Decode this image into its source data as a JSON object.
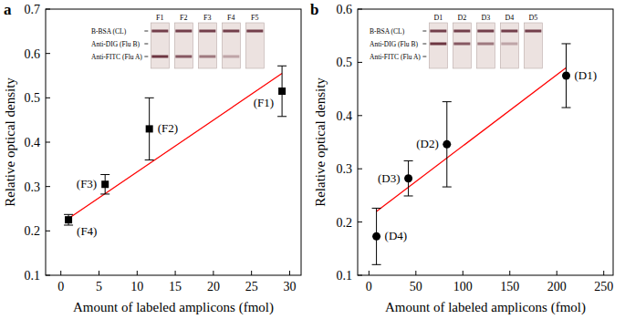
{
  "chart_data": [
    {
      "type": "scatter",
      "panel": "a",
      "x_label": "Amount of labeled amplicons (fmol)",
      "y_label": "Relative optical density",
      "xlim": [
        -2,
        31.5
      ],
      "ylim": [
        0.1,
        0.7
      ],
      "xticks": [
        0,
        5,
        10,
        15,
        20,
        25,
        30
      ],
      "yticks": [
        0.1,
        0.2,
        0.3,
        0.4,
        0.5,
        0.6,
        0.7
      ],
      "series": [
        {
          "type": "scatter",
          "marker": "square",
          "color": "#000000",
          "x": [
            1,
            5.8,
            11.6,
            29
          ],
          "values": [
            0.225,
            0.305,
            0.43,
            0.515
          ],
          "errors": [
            0.012,
            0.022,
            0.07,
            0.057
          ],
          "point_labels": [
            "(F4)",
            "(F3)",
            "(F2)",
            "(F1)"
          ]
        },
        {
          "type": "line",
          "color": "#ff0000",
          "x": [
            1,
            29
          ],
          "values": [
            0.228,
            0.555
          ]
        }
      ],
      "inset": {
        "strip_labels": [
          "F1",
          "F2",
          "F3",
          "F4",
          "F5"
        ],
        "line_labels": [
          "B-BSA (CL)",
          "Anti-DIG (Flu B)",
          "Anti-FITC (Flu A)"
        ]
      }
    },
    {
      "type": "scatter",
      "panel": "b",
      "x_label": "Amount of labeled amplicons (fmol)",
      "y_label": "Relative optical density",
      "xlim": [
        -12,
        260
      ],
      "ylim": [
        0.1,
        0.6
      ],
      "xticks": [
        0,
        50,
        100,
        150,
        200,
        250
      ],
      "yticks": [
        0.1,
        0.2,
        0.3,
        0.4,
        0.5,
        0.6
      ],
      "series": [
        {
          "type": "scatter",
          "marker": "circle",
          "color": "#000000",
          "x": [
            8,
            42,
            83,
            210
          ],
          "values": [
            0.173,
            0.282,
            0.346,
            0.475
          ],
          "errors": [
            0.053,
            0.033,
            0.08,
            0.06
          ],
          "point_labels": [
            "(D4)",
            "(D3)",
            "(D2)",
            "(D1)"
          ]
        },
        {
          "type": "line",
          "color": "#ff0000",
          "x": [
            8,
            210
          ],
          "values": [
            0.22,
            0.49
          ]
        }
      ],
      "inset": {
        "strip_labels": [
          "D1",
          "D2",
          "D3",
          "D4",
          "D5"
        ],
        "line_labels": [
          "B-BSA (CL)",
          "Anti-DIG (Flu B)",
          "Anti-FITC (Flu A)"
        ]
      }
    }
  ]
}
